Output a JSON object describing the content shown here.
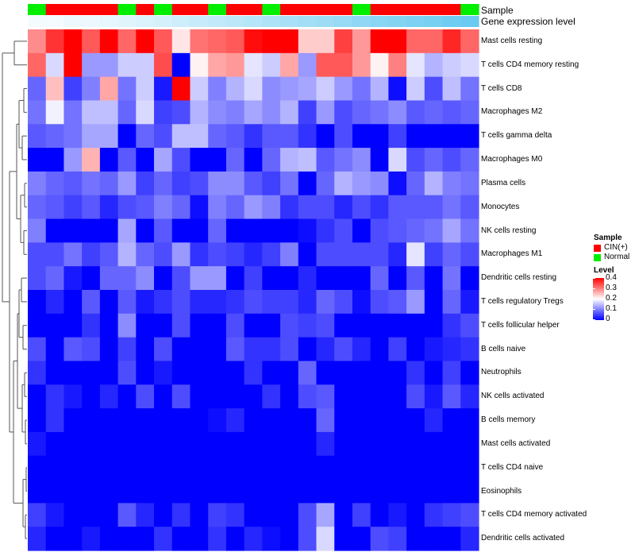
{
  "annotations": {
    "sample_label": "Sample",
    "gene_label": "Gene expression level"
  },
  "legend": {
    "sample_title": "Sample",
    "sample_items": [
      {
        "label": "CIN(+)",
        "color": "#ff0000"
      },
      {
        "label": "Normal",
        "color": "#00ee00"
      }
    ],
    "level_title": "Level",
    "level_ticks": [
      "0.4",
      "0.3",
      "0.2",
      "0.1",
      "0"
    ]
  },
  "chart_data": {
    "type": "heatmap",
    "title": "",
    "color_scale": {
      "low": "#0000ff",
      "mid": "#ffffff",
      "high": "#ff0000",
      "min": 0,
      "max": 0.4,
      "mid_value": 0.2
    },
    "sample_groups": [
      "Normal",
      "CIN(+)",
      "CIN(+)",
      "CIN(+)",
      "CIN(+)",
      "Normal",
      "CIN(+)",
      "Normal",
      "CIN(+)",
      "CIN(+)",
      "Normal",
      "CIN(+)",
      "CIN(+)",
      "Normal",
      "CIN(+)",
      "CIN(+)",
      "CIN(+)",
      "CIN(+)",
      "Normal",
      "CIN(+)",
      "CIN(+)",
      "CIN(+)",
      "CIN(+)",
      "CIN(+)",
      "Normal"
    ],
    "gene_level": [
      0.02,
      0.02,
      0.03,
      0.03,
      0.04,
      0.05,
      0.06,
      0.07,
      0.08,
      0.09,
      0.1,
      0.11,
      0.12,
      0.13,
      0.14,
      0.15,
      0.16,
      0.17,
      0.18,
      0.19,
      0.2,
      0.21,
      0.22,
      0.23,
      0.24
    ],
    "rows": [
      "Mast cells resting",
      "T cells CD4 memory resting",
      "T cells CD8",
      "Macrophages M2",
      "T cells gamma delta",
      "Macrophages M0",
      "Plasma cells",
      "Monocytes",
      "NK cells resting",
      "Macrophages M1",
      "Dendritic cells resting",
      "T cells regulatory  Tregs",
      "T cells follicular helper",
      "B cells naive",
      "Neutrophils",
      "NK cells activated",
      "B cells memory",
      "Mast cells activated",
      "T cells CD4 naive",
      "Eosinophils",
      "T cells CD4 memory activated",
      "Dendritic cells activated"
    ],
    "values": [
      [
        0.29,
        0.36,
        0.4,
        0.33,
        0.4,
        0.32,
        0.4,
        0.33,
        0.22,
        0.31,
        0.32,
        0.33,
        0.39,
        0.4,
        0.4,
        0.24,
        0.24,
        0.35,
        0.28,
        0.4,
        0.4,
        0.32,
        0.32,
        0.37,
        0.32
      ],
      [
        0.32,
        0.17,
        0.4,
        0.12,
        0.12,
        0.16,
        0.16,
        0.34,
        0.0,
        0.21,
        0.27,
        0.28,
        0.18,
        0.16,
        0.27,
        0.12,
        0.33,
        0.33,
        0.28,
        0.21,
        0.3,
        0.18,
        0.14,
        0.16,
        0.17
      ],
      [
        0.08,
        0.25,
        0.05,
        0.1,
        0.27,
        0.09,
        0.16,
        0.02,
        0.4,
        0.16,
        0.1,
        0.14,
        0.17,
        0.11,
        0.12,
        0.13,
        0.16,
        0.12,
        0.09,
        0.14,
        0.01,
        0.16,
        0.06,
        0.15,
        0.09
      ],
      [
        0.09,
        0.19,
        0.09,
        0.15,
        0.15,
        0.08,
        0.17,
        0.05,
        0.06,
        0.14,
        0.11,
        0.1,
        0.13,
        0.11,
        0.14,
        0.05,
        0.12,
        0.06,
        0.08,
        0.09,
        0.11,
        0.07,
        0.08,
        0.07,
        0.08
      ],
      [
        0.07,
        0.08,
        0.09,
        0.13,
        0.13,
        0.0,
        0.08,
        0.06,
        0.15,
        0.15,
        0.08,
        0.07,
        0.04,
        0.07,
        0.07,
        0.04,
        0.0,
        0.06,
        0.0,
        0.0,
        0.05,
        0.0,
        0.0,
        0.0,
        0.0
      ],
      [
        0.0,
        0.0,
        0.12,
        0.26,
        0.0,
        0.07,
        0.0,
        0.13,
        0.06,
        0.0,
        0.0,
        0.08,
        0.0,
        0.08,
        0.14,
        0.15,
        0.07,
        0.09,
        0.11,
        0.0,
        0.17,
        0.06,
        0.08,
        0.06,
        0.08
      ],
      [
        0.1,
        0.08,
        0.07,
        0.09,
        0.08,
        0.12,
        0.05,
        0.08,
        0.05,
        0.06,
        0.11,
        0.11,
        0.07,
        0.05,
        0.09,
        0.0,
        0.08,
        0.14,
        0.12,
        0.11,
        0.01,
        0.08,
        0.14,
        0.1,
        0.09
      ],
      [
        0.08,
        0.07,
        0.05,
        0.07,
        0.03,
        0.06,
        0.07,
        0.1,
        0.08,
        0.01,
        0.1,
        0.08,
        0.12,
        0.1,
        0.04,
        0.06,
        0.06,
        0.03,
        0.06,
        0.04,
        0.07,
        0.07,
        0.07,
        0.09,
        0.07
      ],
      [
        0.1,
        0.0,
        0.0,
        0.0,
        0.0,
        0.13,
        0.0,
        0.07,
        0.0,
        0.0,
        0.08,
        0.0,
        0.0,
        0.0,
        0.0,
        0.01,
        0.04,
        0.06,
        0.0,
        0.06,
        0.07,
        0.08,
        0.09,
        0.13,
        0.09
      ],
      [
        0.06,
        0.06,
        0.09,
        0.05,
        0.07,
        0.14,
        0.08,
        0.06,
        0.12,
        0.04,
        0.06,
        0.05,
        0.03,
        0.05,
        0.1,
        0.0,
        0.06,
        0.06,
        0.06,
        0.06,
        0.03,
        0.18,
        0.05,
        0.08,
        0.06
      ],
      [
        0.06,
        0.08,
        0.02,
        0.0,
        0.08,
        0.08,
        0.11,
        0.0,
        0.06,
        0.12,
        0.12,
        0.0,
        0.05,
        0.0,
        0.0,
        0.03,
        0.0,
        0.0,
        0.0,
        0.08,
        0.0,
        0.07,
        0.0,
        0.09,
        0.0
      ],
      [
        0.0,
        0.03,
        0.0,
        0.07,
        0.0,
        0.07,
        0.02,
        0.04,
        0.06,
        0.03,
        0.03,
        0.04,
        0.06,
        0.05,
        0.05,
        0.03,
        0.08,
        0.06,
        0.01,
        0.06,
        0.07,
        0.12,
        0.0,
        0.08,
        0.02
      ],
      [
        0.0,
        0.0,
        0.0,
        0.04,
        0.0,
        0.11,
        0.0,
        0.0,
        0.06,
        0.0,
        0.0,
        0.06,
        0.0,
        0.0,
        0.06,
        0.05,
        0.06,
        0.0,
        0.0,
        0.0,
        0.0,
        0.0,
        0.0,
        0.04,
        0.06
      ],
      [
        0.06,
        0.0,
        0.07,
        0.06,
        0.0,
        0.05,
        0.0,
        0.06,
        0.0,
        0.0,
        0.0,
        0.07,
        0.04,
        0.04,
        0.06,
        0.0,
        0.03,
        0.06,
        0.03,
        0.0,
        0.05,
        0.0,
        0.02,
        0.03,
        0.04
      ],
      [
        0.04,
        0.0,
        0.0,
        0.0,
        0.0,
        0.06,
        0.0,
        0.02,
        0.0,
        0.0,
        0.0,
        0.0,
        0.04,
        0.0,
        0.0,
        0.08,
        0.0,
        0.0,
        0.0,
        0.0,
        0.0,
        0.04,
        0.0,
        0.05,
        0.0
      ],
      [
        0.0,
        0.04,
        0.02,
        0.0,
        0.03,
        0.0,
        0.06,
        0.0,
        0.06,
        0.0,
        0.0,
        0.0,
        0.0,
        0.04,
        0.0,
        0.06,
        0.07,
        0.0,
        0.0,
        0.0,
        0.0,
        0.06,
        0.02,
        0.07,
        0.03
      ],
      [
        0.0,
        0.04,
        0.0,
        0.0,
        0.0,
        0.0,
        0.0,
        0.0,
        0.0,
        0.0,
        0.01,
        0.03,
        0.0,
        0.0,
        0.0,
        0.0,
        0.08,
        0.0,
        0.0,
        0.0,
        0.0,
        0.0,
        0.03,
        0.0,
        0.0
      ],
      [
        0.02,
        0.0,
        0.0,
        0.0,
        0.0,
        0.0,
        0.0,
        0.0,
        0.0,
        0.0,
        0.0,
        0.0,
        0.0,
        0.0,
        0.0,
        0.0,
        0.03,
        0.0,
        0.0,
        0.0,
        0.0,
        0.0,
        0.0,
        0.0,
        0.0
      ],
      [
        0.0,
        0.0,
        0.0,
        0.0,
        0.0,
        0.0,
        0.0,
        0.0,
        0.0,
        0.0,
        0.0,
        0.0,
        0.0,
        0.0,
        0.0,
        0.0,
        0.0,
        0.0,
        0.0,
        0.0,
        0.0,
        0.0,
        0.0,
        0.0,
        0.0
      ],
      [
        0.0,
        0.0,
        0.0,
        0.0,
        0.0,
        0.0,
        0.0,
        0.0,
        0.0,
        0.0,
        0.0,
        0.0,
        0.0,
        0.0,
        0.0,
        0.0,
        0.0,
        0.0,
        0.0,
        0.0,
        0.0,
        0.0,
        0.0,
        0.0,
        0.0
      ],
      [
        0.05,
        0.02,
        0.0,
        0.0,
        0.0,
        0.07,
        0.03,
        0.0,
        0.04,
        0.0,
        0.05,
        0.04,
        0.0,
        0.0,
        0.0,
        0.06,
        0.13,
        0.0,
        0.05,
        0.0,
        0.02,
        0.0,
        0.04,
        0.05,
        0.06
      ],
      [
        0.03,
        0.0,
        0.0,
        0.02,
        0.0,
        0.0,
        0.0,
        0.04,
        0.0,
        0.0,
        0.04,
        0.0,
        0.03,
        0.01,
        0.0,
        0.06,
        0.17,
        0.0,
        0.0,
        0.06,
        0.05,
        0.0,
        0.0,
        0.0,
        0.03
      ]
    ]
  }
}
